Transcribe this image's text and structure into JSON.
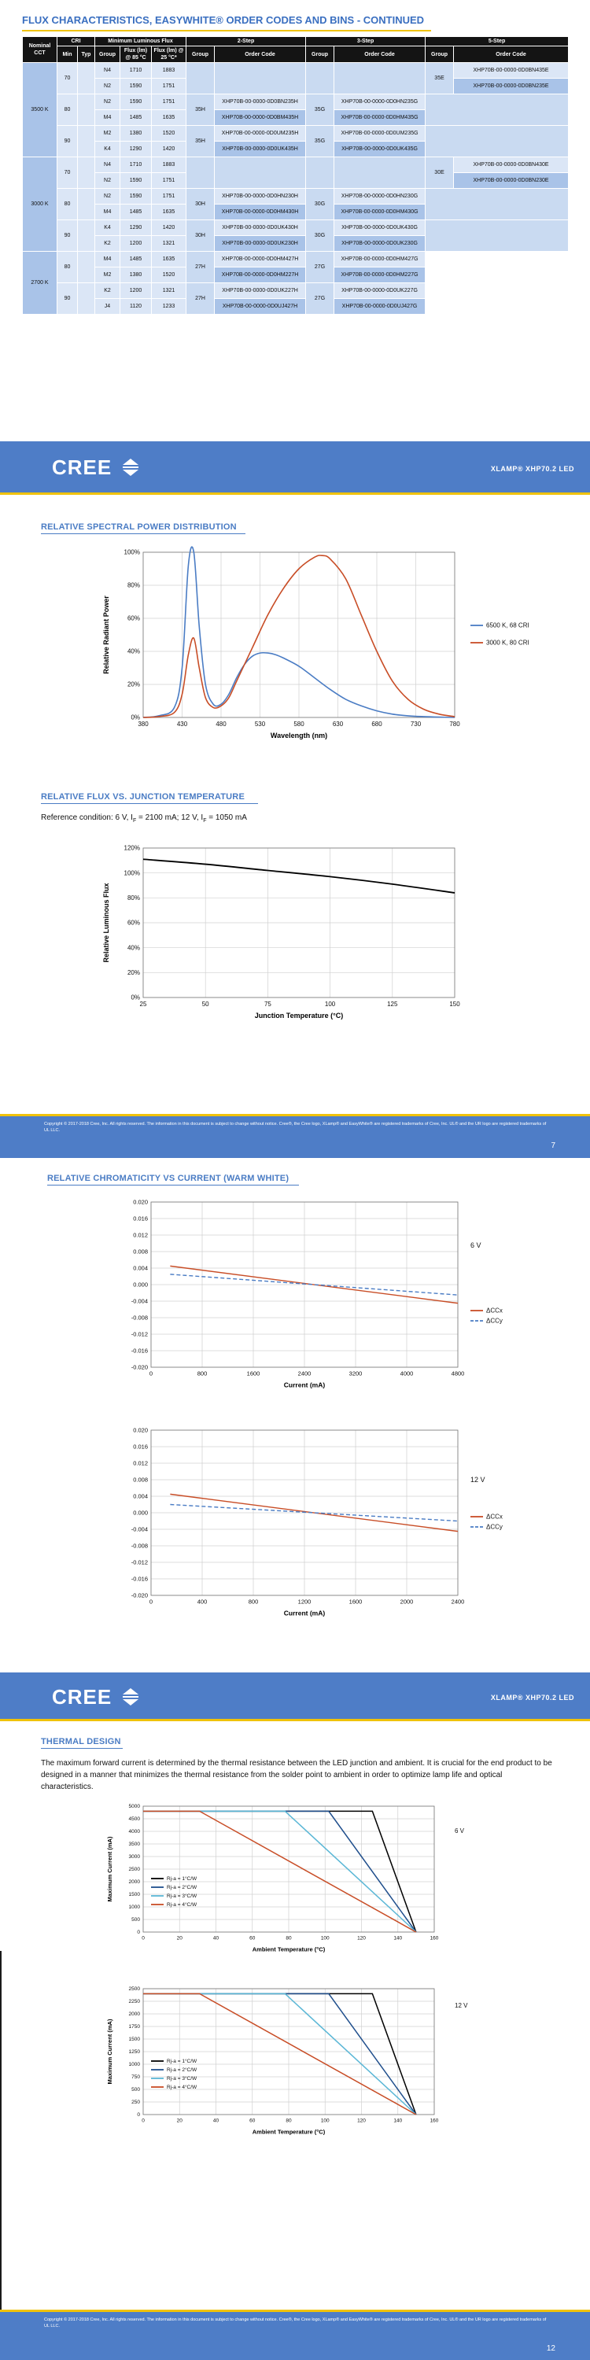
{
  "page1": {
    "title": "FLUX CHARACTERISTICS, EASYWHITE® ORDER CODES AND BINS - CONTINUED",
    "headers": {
      "nominal_cct": "Nominal CCT",
      "cri": "CRI",
      "cri_min": "Min",
      "cri_typ": "Typ",
      "min_flux": "Minimum Luminous Flux",
      "group": "Group",
      "flux85": "Flux (lm) @ 85 °C",
      "flux25": "Flux (lm) @ 25 °C*",
      "step2": "2-Step",
      "step3": "3-Step",
      "step5": "5-Step",
      "group_col": "Group",
      "order_code": "Order Code"
    },
    "cct": [
      "3500 K",
      "3000 K",
      "2700 K"
    ],
    "rows": [
      {
        "min": "70",
        "typ": "",
        "g": "N4",
        "f85": "1710",
        "f25": "1883"
      },
      {
        "min": "",
        "typ": "",
        "g": "N2",
        "f85": "1590",
        "f25": "1751"
      },
      {
        "min": "80",
        "typ": "",
        "g": "N2",
        "f85": "1590",
        "f25": "1751"
      },
      {
        "min": "",
        "typ": "",
        "g": "M4",
        "f85": "1485",
        "f25": "1635"
      },
      {
        "min": "90",
        "typ": "",
        "g": "M2",
        "f85": "1380",
        "f25": "1520"
      },
      {
        "min": "",
        "typ": "",
        "g": "K4",
        "f85": "1290",
        "f25": "1420"
      },
      {
        "min": "70",
        "typ": "",
        "g": "N4",
        "f85": "1710",
        "f25": "1883"
      },
      {
        "min": "",
        "typ": "",
        "g": "N2",
        "f85": "1590",
        "f25": "1751"
      },
      {
        "min": "80",
        "typ": "",
        "g": "N2",
        "f85": "1590",
        "f25": "1751"
      },
      {
        "min": "",
        "typ": "",
        "g": "M4",
        "f85": "1485",
        "f25": "1635"
      },
      {
        "min": "90",
        "typ": "",
        "g": "K4",
        "f85": "1290",
        "f25": "1420"
      },
      {
        "min": "",
        "typ": "",
        "g": "K2",
        "f85": "1200",
        "f25": "1321"
      },
      {
        "min": "80",
        "typ": "",
        "g": "M4",
        "f85": "1485",
        "f25": "1635"
      },
      {
        "min": "",
        "typ": "",
        "g": "M2",
        "f85": "1380",
        "f25": "1520"
      },
      {
        "min": "90",
        "typ": "",
        "g": "K2",
        "f85": "1200",
        "f25": "1321"
      },
      {
        "min": "",
        "typ": "",
        "g": "J4",
        "f85": "1120",
        "f25": "1233"
      }
    ],
    "step2": [
      {
        "group": "35H",
        "codes": [
          "XHP70B-00-0000-0D0BN235H",
          "XHP70B-00-0000-0D0BM435H"
        ]
      },
      {
        "group": "35H",
        "codes": [
          "XHP70B-00-0000-0D0UM235H",
          "XHP70B-00-0000-0D0UK435H"
        ]
      },
      {
        "group": "30H",
        "codes": [
          "XHP70B-00-0000-0D0HN230H",
          "XHP70B-00-0000-0D0HM430H"
        ]
      },
      {
        "group": "30H",
        "codes": [
          "XHP70B-00-0000-0D0UK430H",
          "XHP70B-00-0000-0D0UK230H"
        ]
      },
      {
        "group": "27H",
        "codes": [
          "XHP70B-00-0000-0D0HM427H",
          "XHP70B-00-0000-0D0HM227H"
        ]
      },
      {
        "group": "27H",
        "codes": [
          "XHP70B-00-0000-0D0UK227H",
          "XHP70B-00-0000-0D0UJ427H"
        ]
      }
    ],
    "step3": [
      {
        "group": "35G",
        "codes": [
          "XHP70B-00-0000-0D0HN235G",
          "XHP70B-00-0000-0D0HM435G"
        ]
      },
      {
        "group": "35G",
        "codes": [
          "XHP70B-00-0000-0D0UM235G",
          "XHP70B-00-0000-0D0UK435G"
        ]
      },
      {
        "group": "30G",
        "codes": [
          "XHP70B-00-0000-0D0HN230G",
          "XHP70B-00-0000-0D0HM430G"
        ]
      },
      {
        "group": "30G",
        "codes": [
          "XHP70B-00-0000-0D0UK430G",
          "XHP70B-00-0000-0D0UK230G"
        ]
      },
      {
        "group": "27G",
        "codes": [
          "XHP70B-00-0000-0D0HM427G",
          "XHP70B-00-0000-0D0HM227G"
        ]
      },
      {
        "group": "27G",
        "codes": [
          "XHP70B-00-0000-0D0UK227G",
          "XHP70B-00-0000-0D0UJ427G"
        ]
      }
    ],
    "step5": [
      {
        "group": "35E",
        "codes": [
          "XHP70B-00-0000-0D0BN435E",
          "XHP70B-00-0000-0D0BN235E"
        ]
      },
      {
        "group": "30E",
        "codes": [
          "XHP70B-00-0000-0D0BN430E",
          "XHP70B-00-0000-0D0BN230E"
        ]
      }
    ]
  },
  "header": {
    "logo": "CREE",
    "product": "XLAMP® XHP70.2 LED"
  },
  "spd": {
    "title": "RELATIVE SPECTRAL POWER DISTRIBUTION",
    "chart_data": {
      "type": "line",
      "title": "",
      "xlabel": "Wavelength (nm)",
      "ylabel": "Relative Radiant Power",
      "xlim": [
        380,
        780
      ],
      "ylim": [
        0,
        100
      ],
      "xticks": [
        "380",
        "430",
        "480",
        "530",
        "580",
        "630",
        "680",
        "730",
        "780"
      ],
      "yticks": [
        "0%",
        "20%",
        "40%",
        "60%",
        "80%",
        "100%"
      ],
      "legend_position": "right",
      "series": [
        {
          "name": "6500 K, 68 CRI",
          "color": "#4a7cc4",
          "x": [
            380,
            400,
            420,
            430,
            438,
            445,
            452,
            460,
            470,
            480,
            490,
            500,
            510,
            520,
            530,
            540,
            550,
            560,
            580,
            600,
            620,
            640,
            660,
            680,
            700,
            720,
            740,
            760,
            780
          ],
          "y": [
            0,
            1,
            6,
            30,
            92,
            100,
            55,
            20,
            8,
            8,
            14,
            24,
            32,
            37,
            39,
            39,
            38,
            36,
            31,
            24,
            17,
            11,
            7,
            4,
            2,
            1,
            0.5,
            0.2,
            0
          ]
        },
        {
          "name": "3000 K, 80 CRI",
          "color": "#c84d26",
          "x": [
            380,
            400,
            420,
            430,
            438,
            445,
            452,
            460,
            470,
            480,
            490,
            500,
            520,
            540,
            560,
            580,
            600,
            610,
            620,
            640,
            660,
            680,
            700,
            720,
            740,
            760,
            780
          ],
          "y": [
            0,
            0.5,
            3,
            14,
            38,
            48,
            30,
            12,
            6,
            7,
            12,
            22,
            42,
            62,
            78,
            90,
            97,
            98,
            96,
            84,
            62,
            40,
            22,
            11,
            5,
            2,
            0.5
          ]
        }
      ]
    }
  },
  "flux": {
    "title": "RELATIVE FLUX VS. JUNCTION TEMPERATURE",
    "reference": "Reference condition: 6 V, I",
    "ref_sub1": "F",
    "ref_mid": " = 2100 mA; 12 V, I",
    "ref_sub2": "F",
    "ref_end": " = 1050 mA",
    "chart_data": {
      "type": "line",
      "xlabel": "Junction Temperature (°C)",
      "ylabel": "Relative Luminous Flux",
      "xlim": [
        25,
        150
      ],
      "ylim": [
        0,
        120
      ],
      "xticks": [
        "25",
        "50",
        "75",
        "100",
        "125",
        "150"
      ],
      "yticks": [
        "0%",
        "20%",
        "40%",
        "60%",
        "80%",
        "100%",
        "120%"
      ],
      "series": [
        {
          "color": "#000000",
          "x": [
            25,
            50,
            75,
            100,
            125,
            150
          ],
          "y": [
            111,
            107,
            102,
            97,
            91,
            84
          ]
        }
      ]
    }
  },
  "footer": {
    "copyright": "Copyright © 2017-2018 Cree, Inc. All rights reserved. The information in this document is subject to change without notice. Cree®, the Cree logo, XLamp® and EasyWhite® are registered trademarks of Cree, Inc. UL® and the UR logo are registered trademarks of UL LLC.",
    "page7": "7",
    "page12": "12"
  },
  "chroma": {
    "title": "RELATIVE CHROMATICITY VS CURRENT (WARM WHITE)",
    "charts": [
      {
        "voltage": "6 V",
        "chart_data": {
          "type": "line",
          "xlabel": "Current (mA)",
          "ylabel": "",
          "xlim": [
            0,
            4800
          ],
          "ylim": [
            -0.02,
            0.02
          ],
          "xticks": [
            "0",
            "800",
            "1600",
            "2400",
            "3200",
            "4000",
            "4800"
          ],
          "yticks": [
            "0.020",
            "0.016",
            "0.012",
            "0.008",
            "0.004",
            "0.000",
            "-0.004",
            "-0.008",
            "-0.012",
            "-0.016",
            "-0.020"
          ],
          "legend_position": "right",
          "series": [
            {
              "name": "ΔCCx",
              "color": "#c84d26",
              "x": [
                300,
                4800
              ],
              "y": [
                0.0045,
                -0.0045
              ]
            },
            {
              "name": "ΔCCy",
              "color": "#4a7cc4",
              "dashed": true,
              "x": [
                300,
                4800
              ],
              "y": [
                0.0025,
                -0.0025
              ]
            }
          ]
        }
      },
      {
        "voltage": "12 V",
        "chart_data": {
          "type": "line",
          "xlabel": "Current (mA)",
          "ylabel": "",
          "xlim": [
            0,
            2400
          ],
          "ylim": [
            -0.02,
            0.02
          ],
          "xticks": [
            "0",
            "400",
            "800",
            "1200",
            "1600",
            "2000",
            "2400"
          ],
          "yticks": [
            "0.020",
            "0.016",
            "0.012",
            "0.008",
            "0.004",
            "0.000",
            "-0.004",
            "-0.008",
            "-0.012",
            "-0.016",
            "-0.020"
          ],
          "legend_position": "right",
          "series": [
            {
              "name": "ΔCCx",
              "color": "#c84d26",
              "x": [
                150,
                2400
              ],
              "y": [
                0.0045,
                -0.0045
              ]
            },
            {
              "name": "ΔCCy",
              "color": "#4a7cc4",
              "dashed": true,
              "x": [
                150,
                2400
              ],
              "y": [
                0.002,
                -0.002
              ]
            }
          ]
        }
      }
    ]
  },
  "thermal": {
    "title": "THERMAL DESIGN",
    "paragraph": "The maximum forward current is determined by the thermal resistance between the LED junction and ambient. It is crucial for the end product to be designed in a manner that minimizes the thermal resistance from the solder point to ambient in order to optimize lamp life and optical characteristics.",
    "charts": [
      {
        "voltage": "6 V",
        "chart_data": {
          "type": "line",
          "xlabel": "Ambient Temperature (°C)",
          "ylabel": "Maximum Current (mA)",
          "xlim": [
            0,
            160
          ],
          "ylim": [
            0,
            5000
          ],
          "xticks": [
            "0",
            "20",
            "40",
            "60",
            "80",
            "100",
            "120",
            "140",
            "160"
          ],
          "yticks": [
            "0",
            "500",
            "1000",
            "1500",
            "2000",
            "2500",
            "3000",
            "3500",
            "4000",
            "4500",
            "5000"
          ],
          "legend_position": "bottom-left",
          "series": [
            {
              "name": "Rj-a = 1°C/W",
              "color": "#000000",
              "x": [
                0,
                126,
                150
              ],
              "y": [
                4800,
                4800,
                0
              ]
            },
            {
              "name": "Rj-a = 2°C/W",
              "color": "#1f4e8c",
              "x": [
                0,
                102,
                150
              ],
              "y": [
                4800,
                4800,
                0
              ]
            },
            {
              "name": "Rj-a = 3°C/W",
              "color": "#5bb7d6",
              "x": [
                0,
                78,
                150
              ],
              "y": [
                4800,
                4800,
                0
              ]
            },
            {
              "name": "Rj-a = 4°C/W",
              "color": "#c84d26",
              "x": [
                0,
                31,
                150
              ],
              "y": [
                4800,
                4800,
                0
              ]
            }
          ]
        }
      },
      {
        "voltage": "12 V",
        "chart_data": {
          "type": "line",
          "xlabel": "Ambient Temperature (°C)",
          "ylabel": "Maximum Current (mA)",
          "xlim": [
            0,
            160
          ],
          "ylim": [
            0,
            2500
          ],
          "xticks": [
            "0",
            "20",
            "40",
            "60",
            "80",
            "100",
            "120",
            "140",
            "160"
          ],
          "yticks": [
            "0",
            "250",
            "500",
            "750",
            "1000",
            "1250",
            "1500",
            "1750",
            "2000",
            "2250",
            "2500"
          ],
          "legend_position": "bottom-left",
          "series": [
            {
              "name": "Rj-a = 1°C/W",
              "color": "#000000",
              "x": [
                0,
                126,
                150
              ],
              "y": [
                2400,
                2400,
                0
              ]
            },
            {
              "name": "Rj-a = 2°C/W",
              "color": "#1f4e8c",
              "x": [
                0,
                102,
                150
              ],
              "y": [
                2400,
                2400,
                0
              ]
            },
            {
              "name": "Rj-a = 3°C/W",
              "color": "#5bb7d6",
              "x": [
                0,
                78,
                150
              ],
              "y": [
                2400,
                2400,
                0
              ]
            },
            {
              "name": "Rj-a = 4°C/W",
              "color": "#c84d26",
              "x": [
                0,
                31,
                150
              ],
              "y": [
                2400,
                2400,
                0
              ]
            }
          ]
        }
      }
    ]
  }
}
